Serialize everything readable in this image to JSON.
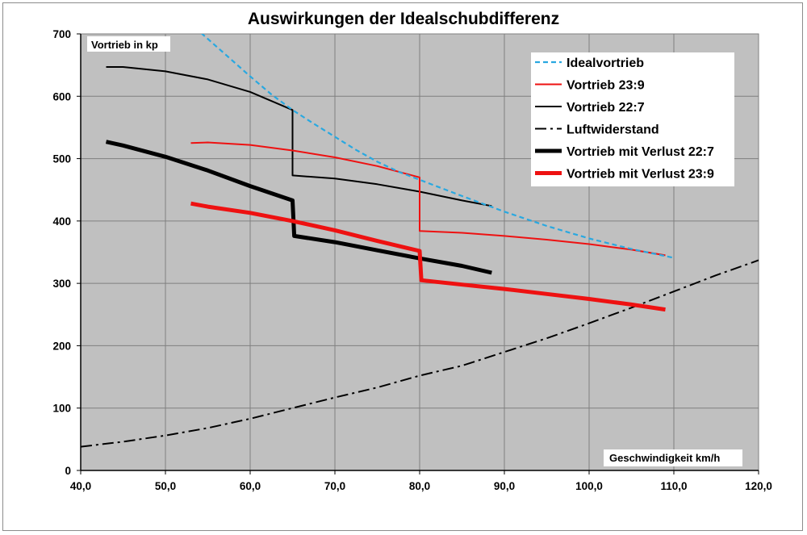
{
  "chart_data": {
    "type": "line",
    "title": "Auswirkungen der Idealschubdifferenz",
    "xlabel": "Geschwindigkeit km/h",
    "ylabel": "Vortrieb in kp",
    "xlim": [
      40,
      120
    ],
    "ylim": [
      0,
      700
    ],
    "x_ticks": [
      40,
      50,
      60,
      70,
      80,
      90,
      100,
      110,
      120
    ],
    "x_tick_labels": [
      "40,0",
      "50,0",
      "60,0",
      "70,0",
      "80,0",
      "90,0",
      "100,0",
      "110,0",
      "120,0"
    ],
    "y_ticks": [
      0,
      100,
      200,
      300,
      400,
      500,
      600,
      700
    ],
    "y_tick_labels": [
      "0",
      "100",
      "200",
      "300",
      "400",
      "500",
      "600",
      "700"
    ],
    "grid": true,
    "legend_position": "top-right",
    "background_color": "#c0c0c0",
    "series": [
      {
        "name": "Idealvortrieb",
        "color": "#29a8e0",
        "style": "dashed",
        "x": [
          53.5,
          55,
          57.5,
          60,
          62.5,
          65,
          67.5,
          70,
          72.5,
          75,
          77.5,
          80,
          85,
          90,
          95,
          100,
          105,
          110
        ],
        "y": [
          710,
          692,
          662,
          632,
          603,
          578,
          556,
          535,
          514,
          495,
          479,
          466,
          440,
          415,
          392,
          372,
          355,
          341
        ]
      },
      {
        "name": "Vortrieb 23:9",
        "color": "#ee1111",
        "style": "thin",
        "x": [
          53,
          55,
          60,
          65,
          70,
          75,
          80,
          80,
          85,
          90,
          95,
          100,
          105,
          109
        ],
        "y": [
          525,
          526,
          522,
          513,
          502,
          488,
          470,
          384,
          381,
          376,
          370,
          363,
          354,
          345
        ]
      },
      {
        "name": "Vortrieb 22:7",
        "color": "#000000",
        "style": "thin",
        "x": [
          43,
          45,
          50,
          55,
          60,
          65,
          65,
          70,
          75,
          80,
          85,
          88.5
        ],
        "y": [
          647,
          647,
          640,
          627,
          607,
          578,
          473,
          468,
          459,
          447,
          433,
          424
        ]
      },
      {
        "name": "Luftwiderstand",
        "color": "#000000",
        "style": "dashdot",
        "x": [
          40,
          45,
          50,
          55,
          60,
          65,
          70,
          75,
          80,
          85,
          90,
          95,
          100,
          105,
          110,
          115,
          120
        ],
        "y": [
          38,
          46,
          56,
          68,
          83,
          100,
          117,
          133,
          152,
          168,
          190,
          212,
          236,
          261,
          287,
          313,
          337
        ]
      },
      {
        "name": "Vortrieb mit Verlust 22:7",
        "color": "#000000",
        "style": "thick",
        "x": [
          43,
          45,
          50,
          55,
          60,
          65,
          65.2,
          70,
          75,
          80,
          85,
          88.5
        ],
        "y": [
          527,
          521,
          503,
          481,
          456,
          433,
          376,
          366,
          353,
          340,
          328,
          317
        ]
      },
      {
        "name": "Vortrieb mit Verlust 23:9",
        "color": "#ee1111",
        "style": "thick",
        "x": [
          53,
          55,
          60,
          65,
          70,
          75,
          80,
          80.2,
          85,
          90,
          95,
          100,
          105,
          109
        ],
        "y": [
          428,
          423,
          413,
          400,
          385,
          368,
          352,
          305,
          298,
          291,
          283,
          275,
          266,
          258
        ]
      }
    ]
  }
}
